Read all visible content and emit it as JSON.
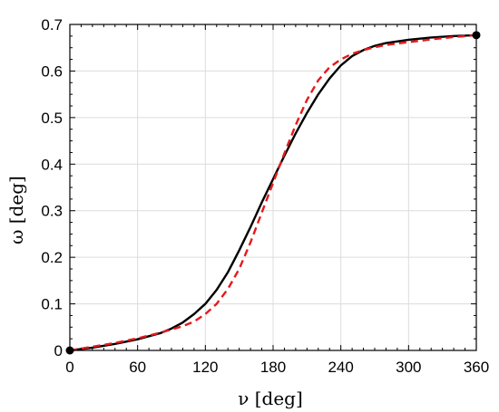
{
  "chart_data": {
    "type": "line",
    "xlabel": "ν [deg]",
    "ylabel": "ω [deg]",
    "xlim": [
      0,
      360
    ],
    "ylim": [
      0,
      0.7
    ],
    "grid": true,
    "xticks": [
      0,
      60,
      120,
      180,
      240,
      300,
      360
    ],
    "yticks": [
      0,
      0.1,
      0.2,
      0.3,
      0.4,
      0.5,
      0.6,
      0.7
    ],
    "xtick_labels": [
      "0",
      "60",
      "120",
      "180",
      "240",
      "300",
      "360"
    ],
    "ytick_labels": [
      "0",
      "0.1",
      "0.2",
      "0.3",
      "0.4",
      "0.5",
      "0.6",
      "0.7"
    ],
    "series": [
      {
        "style": "solid",
        "color": "#000000",
        "x": [
          0,
          20,
          40,
          60,
          80,
          90,
          100,
          110,
          120,
          130,
          140,
          150,
          160,
          170,
          180,
          190,
          200,
          210,
          220,
          230,
          240,
          250,
          260,
          270,
          280,
          300,
          320,
          340,
          360
        ],
        "y": [
          0,
          0.006,
          0.014,
          0.024,
          0.037,
          0.047,
          0.06,
          0.078,
          0.1,
          0.13,
          0.168,
          0.215,
          0.265,
          0.318,
          0.368,
          0.418,
          0.466,
          0.51,
          0.55,
          0.584,
          0.612,
          0.632,
          0.645,
          0.654,
          0.66,
          0.667,
          0.672,
          0.675,
          0.677
        ]
      },
      {
        "style": "dashed",
        "color": "#e41a1c",
        "x": [
          0,
          20,
          40,
          60,
          80,
          90,
          100,
          110,
          120,
          130,
          140,
          150,
          160,
          170,
          180,
          190,
          200,
          210,
          220,
          230,
          240,
          250,
          260,
          270,
          280,
          300,
          320,
          340,
          360
        ],
        "y": [
          0,
          0.008,
          0.016,
          0.026,
          0.038,
          0.045,
          0.052,
          0.062,
          0.078,
          0.1,
          0.132,
          0.175,
          0.232,
          0.296,
          0.36,
          0.423,
          0.484,
          0.538,
          0.58,
          0.608,
          0.625,
          0.637,
          0.645,
          0.651,
          0.656,
          0.662,
          0.668,
          0.673,
          0.677
        ]
      }
    ],
    "markers": [
      {
        "x": 0,
        "y": 0
      },
      {
        "x": 360,
        "y": 0.677
      }
    ]
  }
}
